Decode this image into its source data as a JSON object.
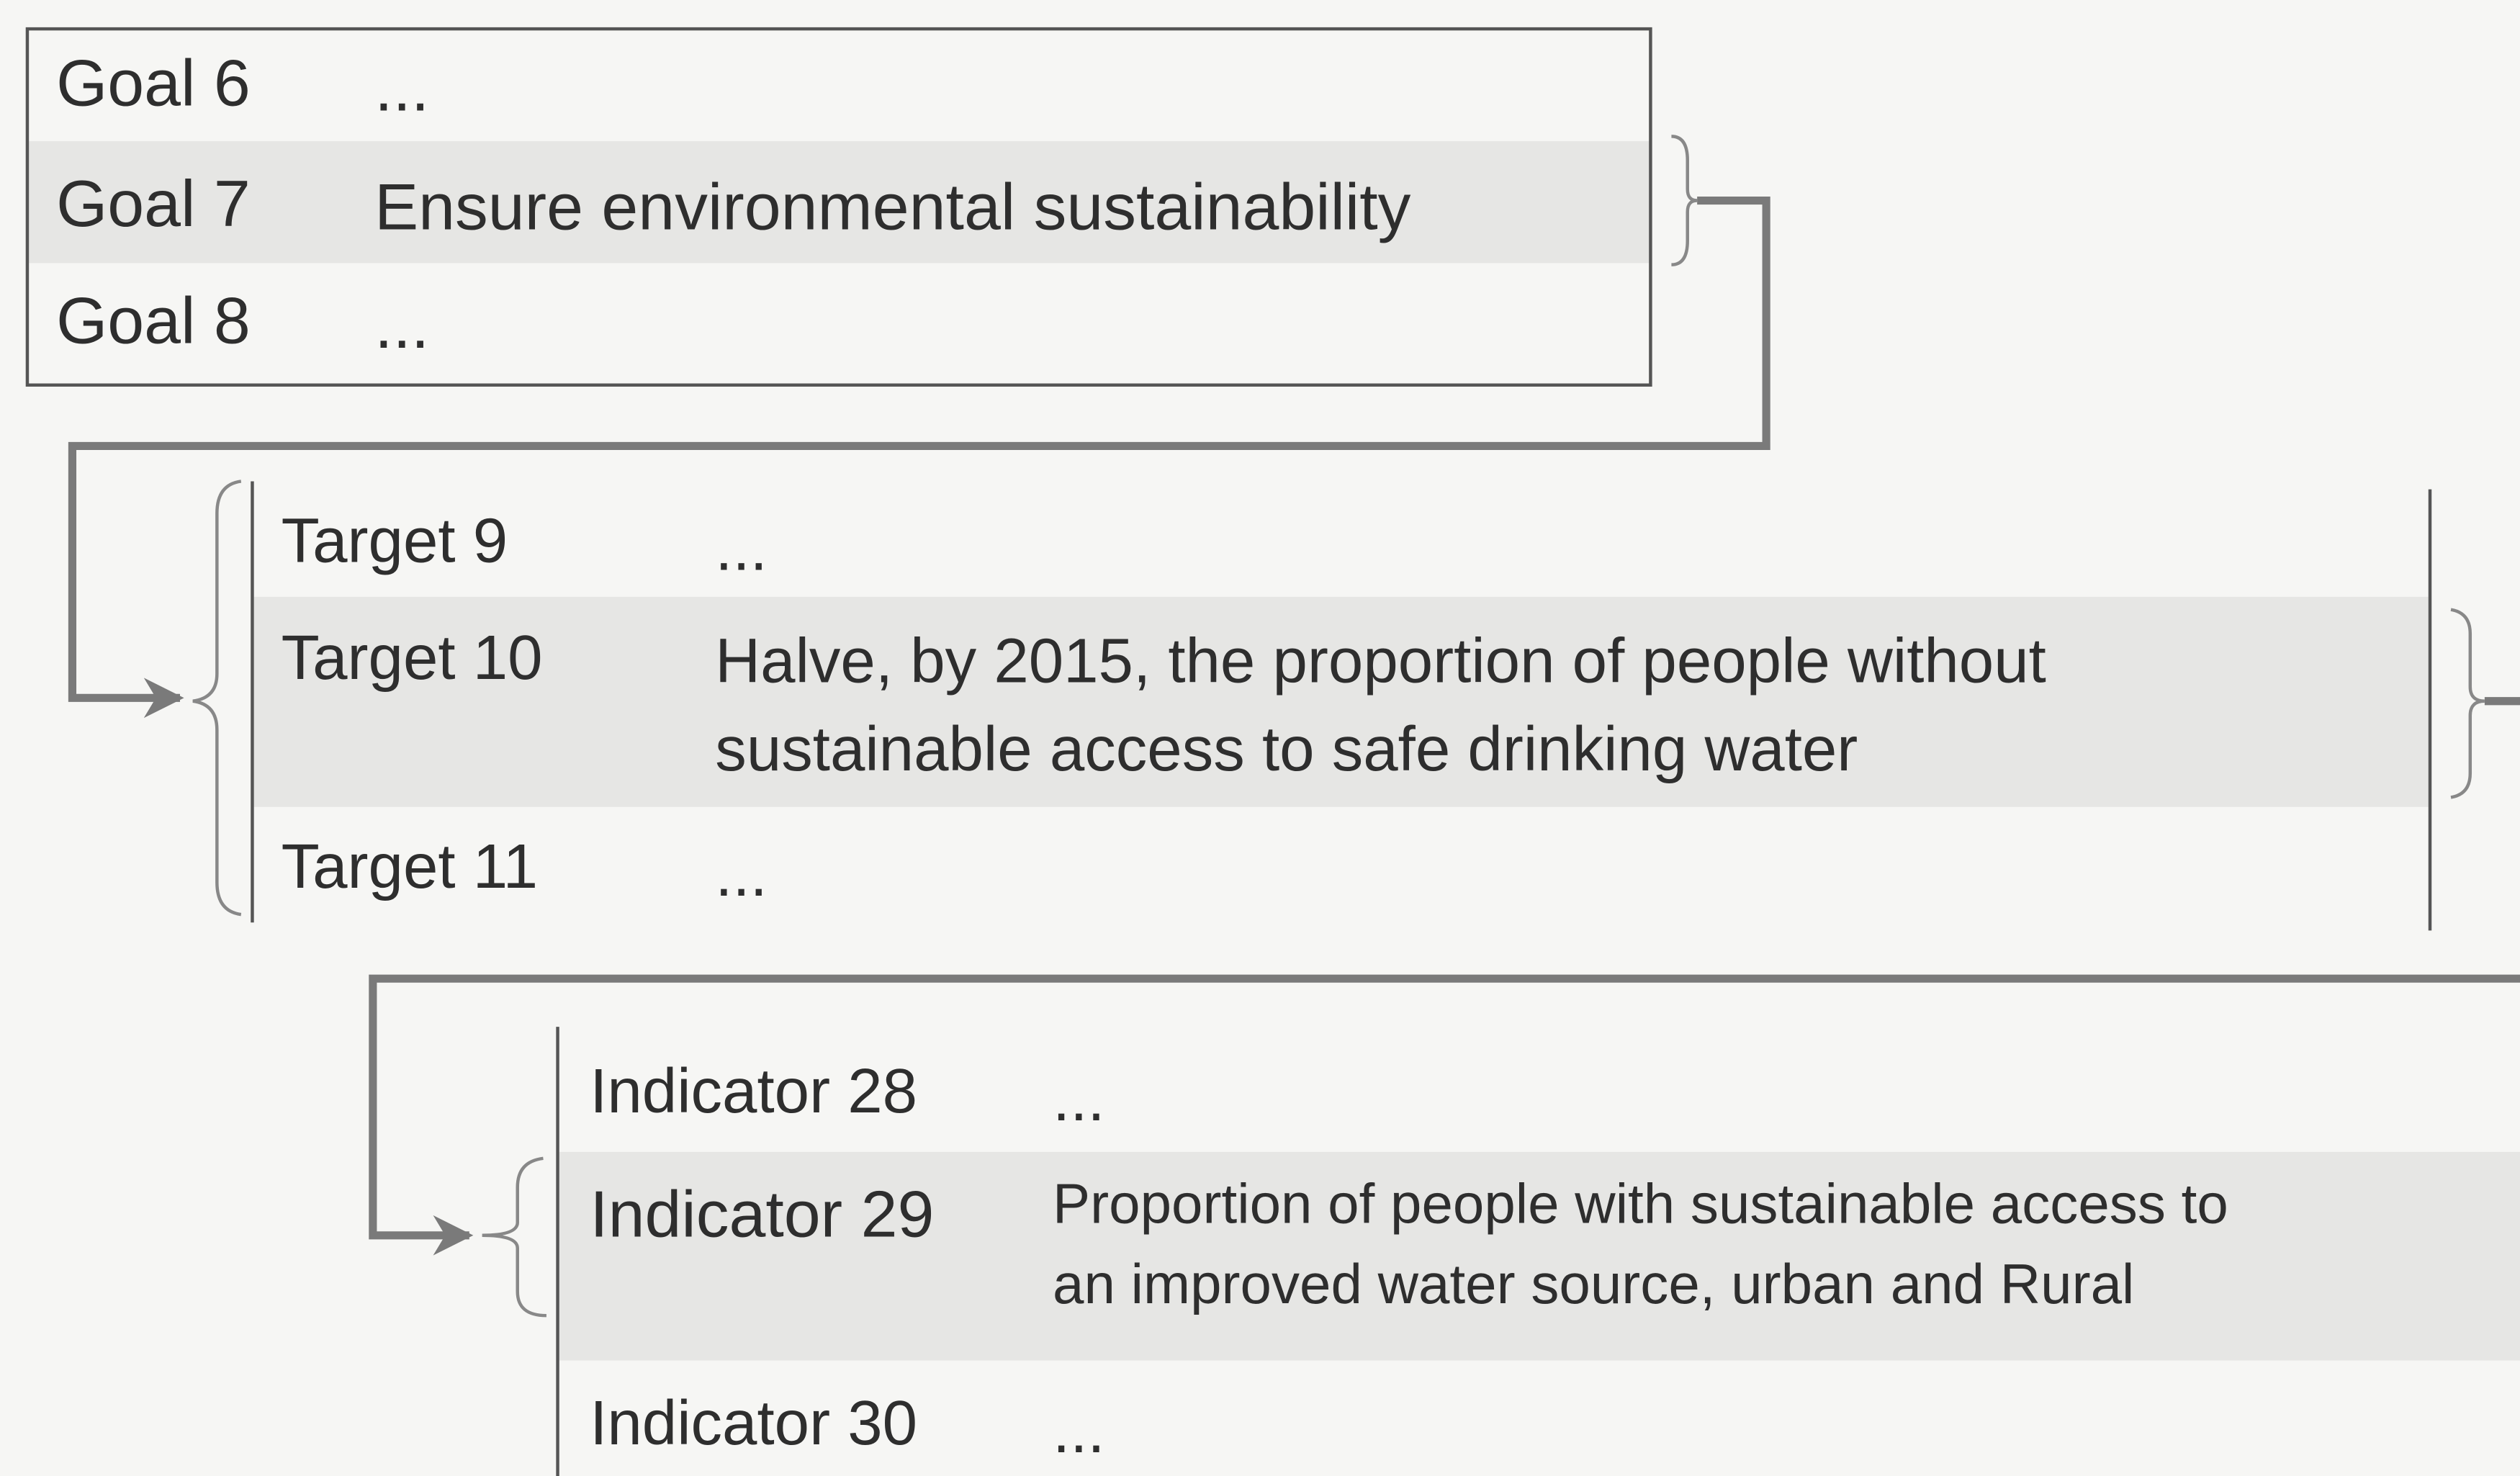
{
  "goals": [
    {
      "label": "Goal 6",
      "text": [
        "..."
      ]
    },
    {
      "label": "Goal 7",
      "text": [
        "Ensure environmental sustainability"
      ]
    },
    {
      "label": "Goal 8",
      "text": [
        "..."
      ]
    }
  ],
  "targets": [
    {
      "label": "Target   9",
      "text": [
        "..."
      ]
    },
    {
      "label": "Target 10",
      "text": [
        "Halve, by 2015, the proportion of people without",
        "sustainable access to safe drinking water"
      ]
    },
    {
      "label": "Target 11",
      "text": [
        "..."
      ]
    }
  ],
  "indicators": [
    {
      "label": "Indicator 28",
      "text": [
        "..."
      ]
    },
    {
      "label": "Indicator 29",
      "text": [
        "Proportion of people with sustainable access to",
        "an improved water source, urban and Rural"
      ]
    },
    {
      "label": "Indicator 30",
      "text": [
        "..."
      ]
    }
  ]
}
